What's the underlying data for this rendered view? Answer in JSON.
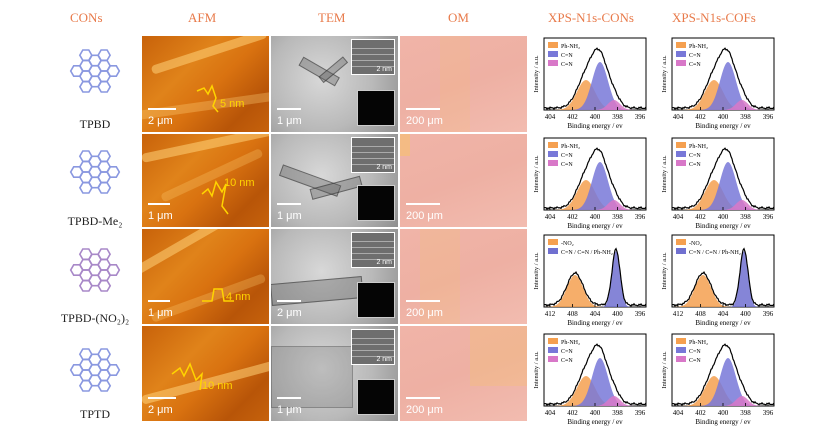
{
  "headers": {
    "cons": "CONs",
    "afm": "AFM",
    "tem": "TEM",
    "om": "OM",
    "xps_cons": "XPS-N1s-CONs",
    "xps_cofs": "XPS-N1s-COFs"
  },
  "rows": [
    {
      "name": "TPBD",
      "afm_scale": "2 μm",
      "height": "5 nm",
      "tem_scale": "1 μm",
      "om_scale": "200 μm"
    },
    {
      "name": "TPBD-Me₂",
      "afm_scale": "1 μm",
      "height": "10 nm",
      "tem_scale": "1 μm",
      "om_scale": "200 μm"
    },
    {
      "name": "TPBD-(NO₂)₂",
      "afm_scale": "1 μm",
      "height": "4 nm",
      "tem_scale": "2 μm",
      "om_scale": "200 μm"
    },
    {
      "name": "TPTD",
      "afm_scale": "2 μm",
      "height": "10 nm",
      "tem_scale": "1 μm",
      "om_scale": "200 μm"
    }
  ],
  "tem_inset_scale": [
    "2 nm",
    "2 nm",
    "2 nm",
    "2 nm"
  ],
  "xps": {
    "ylabel": "Intensity / a.u.",
    "xlabel": "Binding energy / ev",
    "colors": {
      "nh": "#f5a050",
      "cn": "#7878d8",
      "cdn": "#d878c8",
      "no2": "#f5a050",
      "blue": "#7070d0"
    },
    "panels": [
      {
        "id": "r0c",
        "ticks": [
          "404",
          "402",
          "400",
          "398",
          "396"
        ],
        "legend": [
          "Ph-NH₂",
          "C=N",
          "C≡N"
        ],
        "mode": "std"
      },
      {
        "id": "r0f",
        "ticks": [
          "404",
          "402",
          "400",
          "398",
          "396"
        ],
        "legend": [
          "Ph-NH₂",
          "C=N",
          "C≡N"
        ],
        "mode": "std"
      },
      {
        "id": "r1c",
        "ticks": [
          "404",
          "402",
          "400",
          "398",
          "396"
        ],
        "legend": [
          "Ph-NH₂",
          "C=N",
          "C≡N"
        ],
        "mode": "std"
      },
      {
        "id": "r1f",
        "ticks": [
          "404",
          "402",
          "400",
          "398",
          "396"
        ],
        "legend": [
          "Ph-NH₂",
          "C=N",
          "C≡N"
        ],
        "mode": "std"
      },
      {
        "id": "r2c",
        "ticks": [
          "412",
          "408",
          "404",
          "400",
          "396"
        ],
        "legend": [
          "-NO₂",
          "C=N / C≡N / Ph-NH₂"
        ],
        "mode": "no2"
      },
      {
        "id": "r2f",
        "ticks": [
          "412",
          "408",
          "404",
          "400",
          "396"
        ],
        "legend": [
          "-NO₂",
          "C=N / C≡N / Ph-NH₂"
        ],
        "mode": "no2"
      },
      {
        "id": "r3c",
        "ticks": [
          "404",
          "402",
          "400",
          "398",
          "396"
        ],
        "legend": [
          "Ph-NH₂",
          "C=N",
          "C≡N"
        ],
        "mode": "std"
      },
      {
        "id": "r3f",
        "ticks": [
          "404",
          "402",
          "400",
          "398",
          "396"
        ],
        "legend": [
          "Ph-NH₂",
          "C=N",
          "C≡N"
        ],
        "mode": "std"
      }
    ]
  }
}
